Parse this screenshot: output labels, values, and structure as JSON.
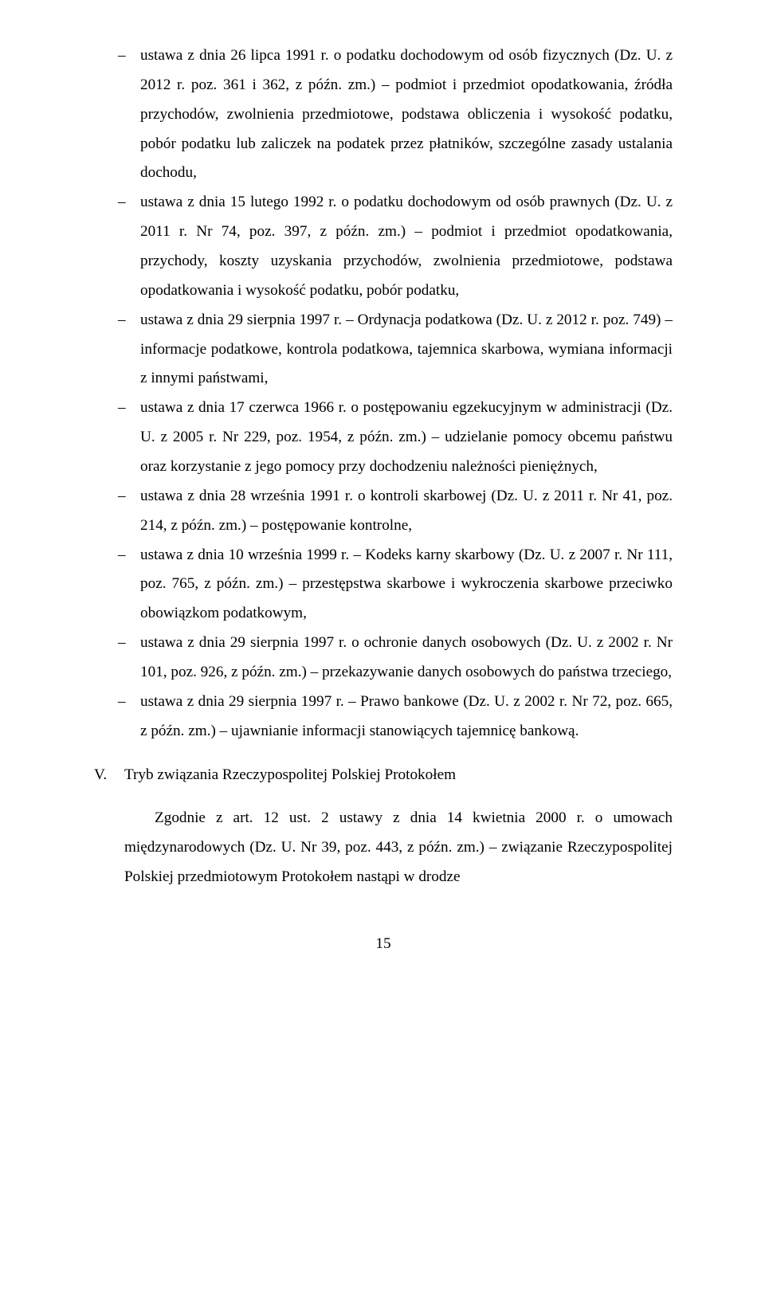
{
  "bullets": [
    "ustawa z dnia 26 lipca 1991 r. o podatku dochodowym od osób fizycznych (Dz. U. z 2012 r. poz. 361 i 362, z późn. zm.) – podmiot i przedmiot opodatkowania, źródła przychodów, zwolnienia przedmiotowe, podstawa obliczenia i wysokość podatku, pobór podatku lub zaliczek na podatek przez płatników, szczególne zasady ustalania dochodu,",
    "ustawa z dnia 15 lutego 1992 r. o podatku dochodowym od osób prawnych (Dz. U. z 2011 r. Nr 74, poz. 397, z późn. zm.) – podmiot i przedmiot opodatkowania, przychody, koszty uzyskania przychodów, zwolnienia przedmiotowe, podstawa opodatkowania i wysokość podatku, pobór podatku,",
    "ustawa z dnia 29 sierpnia 1997 r. – Ordynacja podatkowa (Dz. U. z 2012 r. poz. 749) – informacje podatkowe, kontrola podatkowa, tajemnica skarbowa, wymiana informacji z innymi państwami,",
    "ustawa z dnia 17 czerwca 1966 r. o postępowaniu egzekucyjnym w administracji (Dz. U. z 2005 r. Nr 229, poz. 1954, z późn. zm.) – udzielanie pomocy obcemu państwu oraz korzystanie z jego pomocy przy dochodzeniu należności pieniężnych,",
    "ustawa z dnia 28 września 1991 r. o kontroli skarbowej (Dz. U. z 2011 r. Nr 41, poz. 214, z późn. zm.) – postępowanie kontrolne,",
    "ustawa z dnia 10 września 1999 r. – Kodeks karny skarbowy (Dz. U. z 2007 r. Nr 111, poz. 765, z późn. zm.) – przestępstwa skarbowe i wykroczenia skarbowe przeciwko obowiązkom podatkowym,",
    "ustawa z dnia 29 sierpnia 1997 r. o ochronie danych osobowych (Dz. U. z 2002 r. Nr 101, poz. 926, z późn. zm.) – przekazywanie danych osobowych do państwa trzeciego,",
    "ustawa z dnia 29 sierpnia 1997 r. – Prawo bankowe (Dz. U. z 2002 r. Nr 72, poz. 665, z późn. zm.) – ujawnianie informacji stanowiących tajemnicę bankową."
  ],
  "section": {
    "num": "V.",
    "title": "Tryb związania Rzeczypospolitej Polskiej Protokołem"
  },
  "paragraph": "Zgodnie z art. 12 ust. 2 ustawy z dnia 14 kwietnia 2000 r. o umowach międzynarodowych (Dz. U. Nr 39, poz. 443, z późn. zm.) – związanie Rzeczypospolitej Polskiej przedmiotowym Protokołem nastąpi w drodze",
  "page_number": "15"
}
